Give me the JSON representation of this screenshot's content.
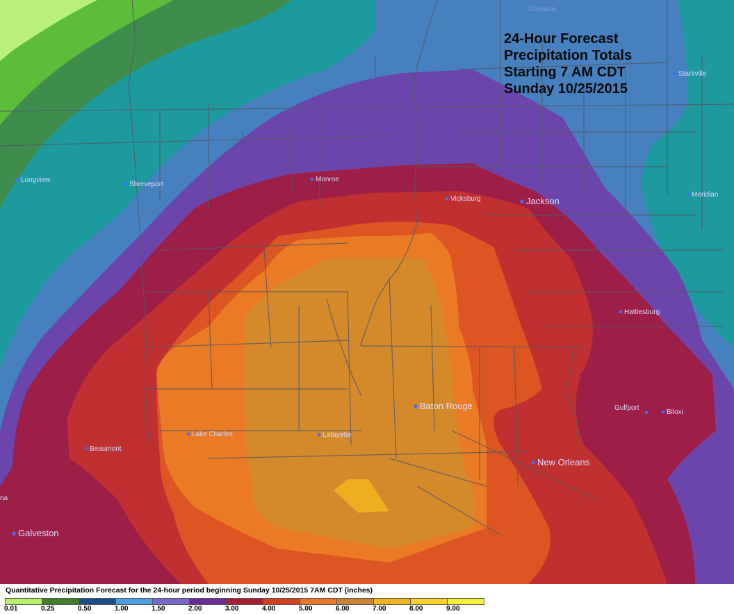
{
  "title": {
    "line1": "24-Hour Forecast",
    "line2": "Precipitation Totals",
    "line3": "Starting 7 AM CDT",
    "line4": "Sunday 10/25/2015"
  },
  "cities": [
    {
      "name": "Longview",
      "size": "small"
    },
    {
      "name": "Shreveport",
      "size": "small"
    },
    {
      "name": "Monroe",
      "size": "small"
    },
    {
      "name": "Vicksburg",
      "size": "small"
    },
    {
      "name": "Jackson",
      "size": "big"
    },
    {
      "name": "Meridian",
      "size": "small"
    },
    {
      "name": "Starkville",
      "size": "small"
    },
    {
      "name": "Hattiesburg",
      "size": "small"
    },
    {
      "name": "Gulfport",
      "size": "small"
    },
    {
      "name": "Biloxi",
      "size": "small"
    },
    {
      "name": "Baton Rouge",
      "size": "big"
    },
    {
      "name": "New Orleans",
      "size": "big"
    },
    {
      "name": "Lafayette",
      "size": "small"
    },
    {
      "name": "Lake Charles",
      "size": "small"
    },
    {
      "name": "Beaumont",
      "size": "small"
    },
    {
      "name": "Galveston",
      "size": "big"
    }
  ],
  "partial_labels": {
    "left_edge": "na",
    "top": "Grenada"
  },
  "legend": {
    "title": "Quantitative Precipitation Forecast for the 24-hour period beginning Sunday 10/25/2015 7AM CDT (inches)",
    "ticks": [
      "0.01",
      "0.25",
      "0.50",
      "1.00",
      "1.50",
      "2.00",
      "3.00",
      "4.00",
      "5.00",
      "6.00",
      "7.00",
      "8.00",
      "9.00"
    ],
    "colors": [
      "#b7f26a",
      "#3f7f2a",
      "#1a4f86",
      "#4aa0e0",
      "#7a68c9",
      "#6a2d95",
      "#a81d30",
      "#d3421f",
      "#e9772a",
      "#c88431",
      "#f2b421",
      "#f8d12d",
      "#f6f33a"
    ]
  },
  "map_colors": {
    "light_green": "#b9f078",
    "green": "#5cbd3a",
    "dark_green": "#3e8d4d",
    "teal": "#1d9a9e",
    "blue": "#4680bf",
    "purple": "#6b45ab",
    "crimson": "#9d1f47",
    "red": "#c13030",
    "red_orange": "#dc5523",
    "orange": "#ea7a24",
    "amber": "#d48a2b",
    "gold": "#edaf1d",
    "boundary": "#555a66"
  }
}
